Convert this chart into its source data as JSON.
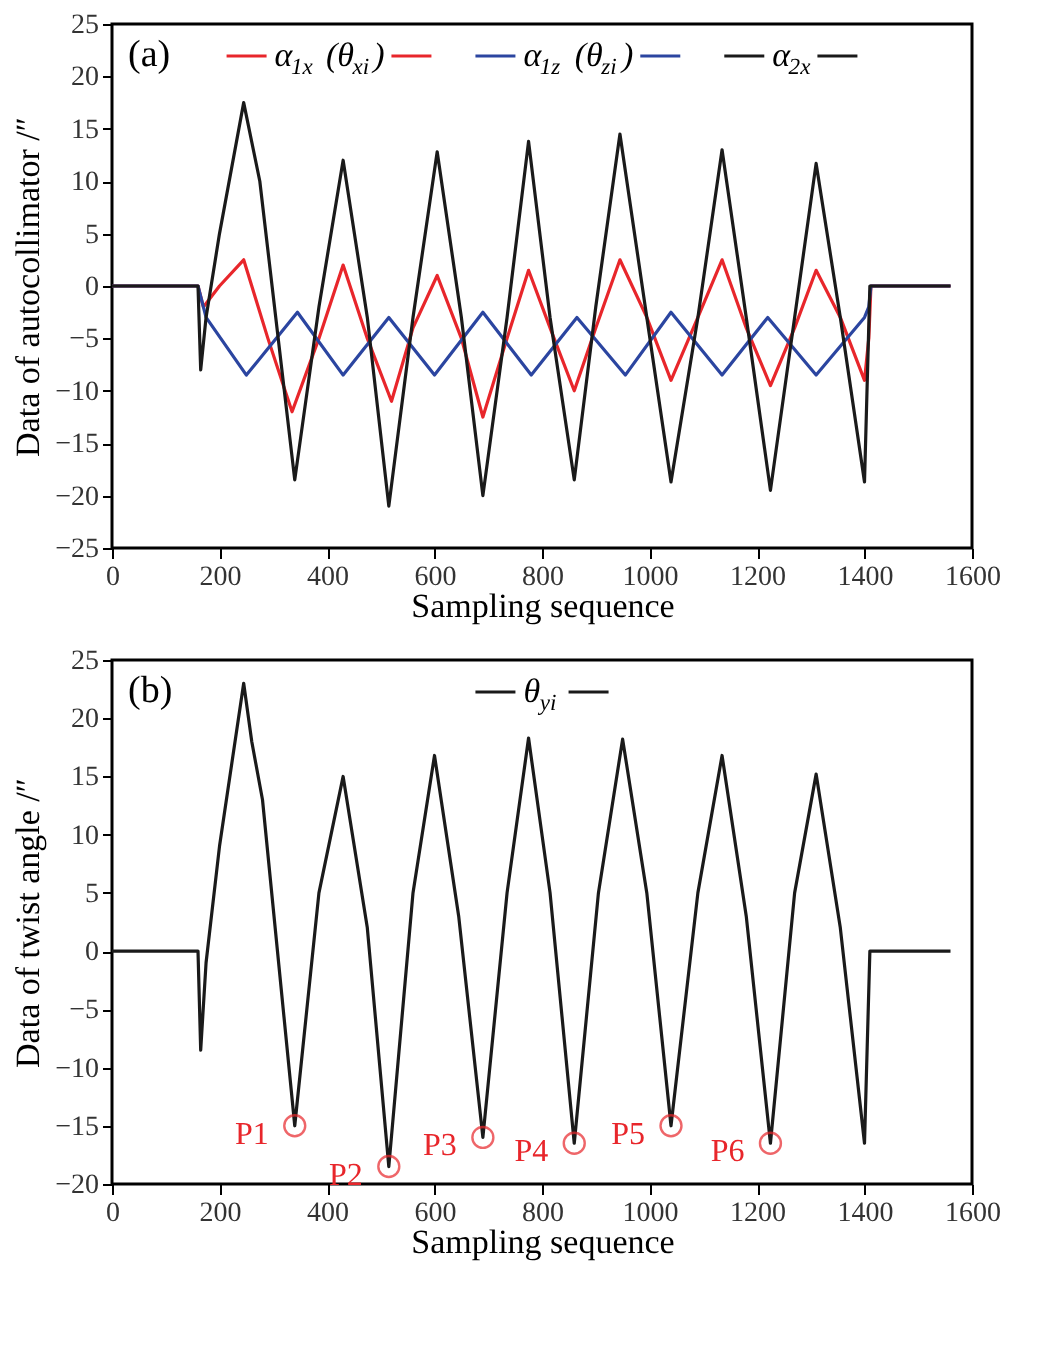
{
  "chart_data": [
    {
      "type": "line",
      "xlabel": "Sampling sequence",
      "ylabel": "Data of autocollimator /″",
      "xlim": [
        0,
        1600
      ],
      "xticks": [
        0,
        200,
        400,
        600,
        800,
        1000,
        1200,
        1400,
        1600
      ],
      "ylim": [
        -25,
        25
      ],
      "yticks": [
        -25,
        -20,
        -15,
        -10,
        -5,
        0,
        5,
        10,
        15,
        20,
        25
      ],
      "grid": false,
      "legend": "top",
      "line_style": "solid",
      "marker": "none",
      "annotations": [
        "(a)"
      ],
      "series": [
        {
          "name": "α$_{1x}$ (θ$_{xi}$)",
          "color": "#e8262b",
          "x": [
            0,
            160,
            170,
            200,
            245,
            290,
            335,
            385,
            430,
            475,
            520,
            560,
            605,
            650,
            690,
            735,
            775,
            815,
            860,
            900,
            945,
            995,
            1040,
            1090,
            1135,
            1180,
            1225,
            1270,
            1310,
            1355,
            1400,
            1408,
            1412,
            1560
          ],
          "values": [
            0,
            0,
            -2,
            0,
            2.5,
            -5,
            -12,
            -5,
            2,
            -5,
            -11,
            -4,
            1,
            -5,
            -12.5,
            -5,
            1.5,
            -4,
            -10,
            -4,
            2.5,
            -3,
            -9,
            -3,
            2.5,
            -4,
            -9.5,
            -4,
            1.5,
            -3,
            -9,
            -5,
            0,
            0
          ]
        },
        {
          "name": "α$_{1z}$ (θ$_{zi}$)",
          "color": "#2b45a0",
          "x": [
            0,
            160,
            175,
            250,
            345,
            430,
            515,
            600,
            690,
            780,
            865,
            955,
            1040,
            1135,
            1220,
            1310,
            1400,
            1408,
            1412,
            1560
          ],
          "values": [
            0,
            0,
            -3,
            -8.5,
            -2.5,
            -8.5,
            -3,
            -8.5,
            -2.5,
            -8.5,
            -3,
            -8.5,
            -2.5,
            -8.5,
            -3,
            -8.5,
            -3,
            -2,
            0,
            0
          ]
        },
        {
          "name": "α$_{2x}$",
          "color": "#1a1a1a",
          "x": [
            0,
            160,
            165,
            175,
            200,
            245,
            275,
            340,
            385,
            430,
            475,
            515,
            560,
            605,
            650,
            690,
            735,
            775,
            815,
            860,
            900,
            945,
            995,
            1040,
            1090,
            1135,
            1180,
            1225,
            1270,
            1310,
            1355,
            1400,
            1410,
            1560
          ],
          "values": [
            0,
            0,
            -8,
            -3,
            5,
            17.5,
            10,
            -18.5,
            -2,
            12,
            -3,
            -21,
            -3,
            12.8,
            -3,
            -20,
            -3,
            13.8,
            -3,
            -18.5,
            -2,
            14.5,
            -3,
            -18.7,
            -3,
            13,
            -3,
            -19.5,
            -3,
            11.7,
            -3,
            -18.7,
            0,
            0
          ]
        }
      ]
    },
    {
      "type": "line",
      "xlabel": "Sampling sequence",
      "ylabel": "Data of twist angle /″",
      "xlim": [
        0,
        1600
      ],
      "xticks": [
        0,
        200,
        400,
        600,
        800,
        1000,
        1200,
        1400,
        1600
      ],
      "ylim": [
        -20,
        25
      ],
      "yticks": [
        -20,
        -15,
        -10,
        -5,
        0,
        5,
        10,
        15,
        20,
        25
      ],
      "grid": false,
      "legend": "top",
      "line_style": "solid",
      "marker": "none",
      "annotations": [
        "(b)",
        {
          "text": "P1",
          "x": 340,
          "y": -15
        },
        {
          "text": "P2",
          "x": 515,
          "y": -18.5
        },
        {
          "text": "P3",
          "x": 690,
          "y": -16
        },
        {
          "text": "P4",
          "x": 860,
          "y": -16.5
        },
        {
          "text": "P5",
          "x": 1040,
          "y": -15
        },
        {
          "text": "P6",
          "x": 1225,
          "y": -16.5
        }
      ],
      "series": [
        {
          "name": "θ$_{yi}$",
          "color": "#1a1a1a",
          "x": [
            0,
            160,
            165,
            175,
            200,
            245,
            260,
            280,
            340,
            385,
            430,
            475,
            515,
            560,
            600,
            645,
            690,
            735,
            775,
            815,
            860,
            905,
            950,
            995,
            1040,
            1090,
            1135,
            1180,
            1225,
            1270,
            1310,
            1355,
            1400,
            1410,
            1560
          ],
          "values": [
            0,
            0,
            -8.5,
            -1,
            9,
            23,
            18,
            13,
            -15,
            5,
            15,
            2,
            -18.5,
            5,
            16.8,
            3,
            -16,
            5,
            18.3,
            5,
            -16.5,
            5,
            18.2,
            5,
            -15,
            5,
            16.8,
            3,
            -16.5,
            5,
            15.2,
            2,
            -16.5,
            0,
            0
          ]
        }
      ]
    }
  ]
}
